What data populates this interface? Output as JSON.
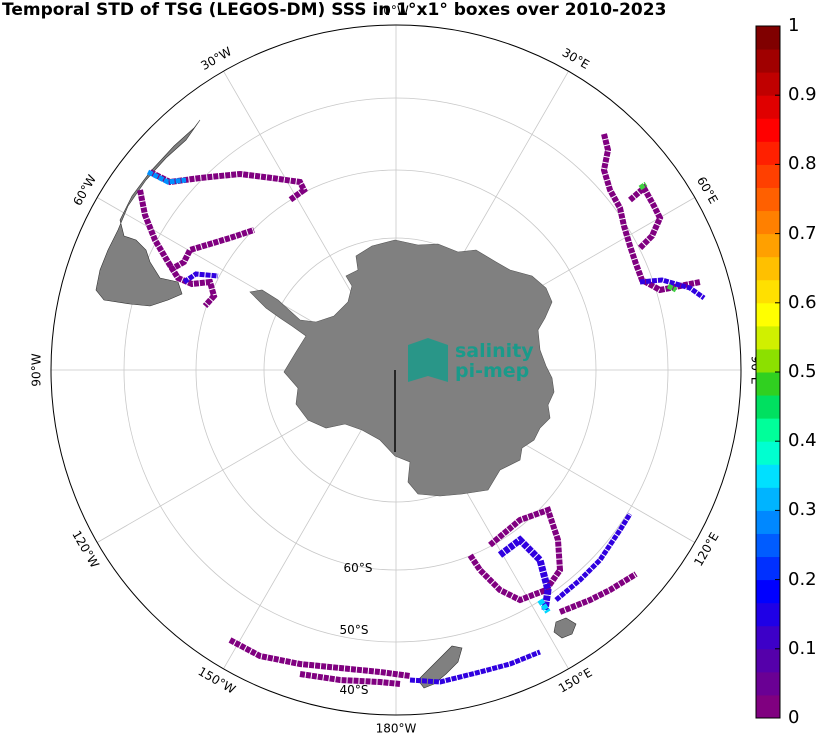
{
  "title": "Temporal STD of TSG (LEGOS-DM) SSS in 1°x1° boxes over 2010-2023",
  "logo": {
    "line1": "salinity",
    "line2": "pi-mep",
    "color": "#1a9a8a"
  },
  "map": {
    "projection": "south-polar-stereographic",
    "longitude_labels": [
      {
        "text": "0°W",
        "lon": 0
      },
      {
        "text": "30°E",
        "lon": 30
      },
      {
        "text": "60°E",
        "lon": 60
      },
      {
        "text": "90°E",
        "lon": 90
      },
      {
        "text": "120°E",
        "lon": 120
      },
      {
        "text": "150°E",
        "lon": 150
      },
      {
        "text": "180°W",
        "lon": 180
      },
      {
        "text": "150°W",
        "lon": -150
      },
      {
        "text": "120°W",
        "lon": -120
      },
      {
        "text": "90°W",
        "lon": -90
      },
      {
        "text": "60°W",
        "lon": -60
      },
      {
        "text": "30°W",
        "lon": -30
      }
    ],
    "latitude_labels": [
      "60°S",
      "50°S",
      "40°S"
    ],
    "land_color": "#808080",
    "grid_color": "#c8c8c8"
  },
  "colorbar": {
    "ticks": [
      "0",
      "0.1",
      "0.2",
      "0.3",
      "0.4",
      "0.5",
      "0.6",
      "0.7",
      "0.8",
      "0.9",
      "1"
    ],
    "colors": [
      "#800080",
      "#6a0094",
      "#5500aa",
      "#3d00c8",
      "#1f00e6",
      "#0000ff",
      "#0030ff",
      "#005cff",
      "#0088ff",
      "#00b4ff",
      "#00e0ff",
      "#00ffd0",
      "#00ff9a",
      "#00e060",
      "#30d020",
      "#8ce000",
      "#d0f000",
      "#ffff00",
      "#ffe000",
      "#ffc000",
      "#ffa000",
      "#ff8000",
      "#ff6000",
      "#ff4000",
      "#ff2000",
      "#ff0000",
      "#e00000",
      "#c00000",
      "#a00000",
      "#800000"
    ]
  }
}
